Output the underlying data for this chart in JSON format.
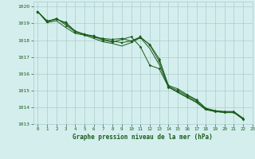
{
  "title": "Graphe pression niveau de la mer (hPa)",
  "background_color": "#d4eeee",
  "grid_color": "#aacccc",
  "line_color": "#1a5c1a",
  "xlim": [
    -0.5,
    23
  ],
  "ylim": [
    1013,
    1020.3
  ],
  "xticks": [
    0,
    1,
    2,
    3,
    4,
    5,
    6,
    7,
    8,
    9,
    10,
    11,
    12,
    13,
    14,
    15,
    16,
    17,
    18,
    19,
    20,
    21,
    22,
    23
  ],
  "yticks": [
    1013,
    1014,
    1015,
    1016,
    1017,
    1018,
    1019,
    1020
  ],
  "series1_x": [
    0,
    1,
    2,
    3,
    4,
    5,
    6,
    7,
    8,
    9,
    10,
    11,
    12,
    13,
    14,
    15,
    16,
    17,
    18,
    19,
    20,
    21,
    22
  ],
  "series1": [
    1019.7,
    1019.1,
    1019.3,
    1018.9,
    1018.5,
    1018.35,
    1018.2,
    1018.1,
    1018.05,
    1018.1,
    1017.95,
    1018.15,
    1017.75,
    1016.9,
    1015.3,
    1015.1,
    1014.75,
    1014.45,
    1013.95,
    1013.8,
    1013.75,
    1013.75,
    1013.35
  ],
  "series2_x": [
    0,
    1,
    2,
    3,
    4,
    5,
    6,
    7,
    8,
    9,
    10,
    11,
    12,
    13,
    14,
    15,
    16,
    17,
    18,
    19,
    20,
    21,
    22
  ],
  "series2": [
    1019.7,
    1019.15,
    1019.25,
    1019.05,
    1018.55,
    1018.35,
    1018.25,
    1018.05,
    1017.95,
    1017.85,
    1017.95,
    1018.2,
    1017.7,
    1016.75,
    1015.25,
    1015.0,
    1014.7,
    1014.4,
    1013.9,
    1013.78,
    1013.72,
    1013.72,
    1013.32
  ],
  "series3_x": [
    0,
    1,
    2,
    3,
    4,
    5,
    6,
    7,
    8,
    9,
    10,
    11,
    12,
    13,
    14,
    15,
    16,
    17,
    18,
    19,
    20,
    21,
    22
  ],
  "series3": [
    1019.7,
    1019.05,
    1019.15,
    1018.75,
    1018.4,
    1018.3,
    1018.1,
    1017.9,
    1017.8,
    1017.65,
    1017.85,
    1018.15,
    1017.5,
    1016.55,
    1015.2,
    1014.88,
    1014.58,
    1014.28,
    1013.85,
    1013.74,
    1013.68,
    1013.68,
    1013.28
  ],
  "series4_x": [
    0,
    1,
    2,
    3,
    4,
    5,
    6,
    7,
    8,
    9,
    10,
    11,
    12,
    13,
    14,
    15,
    16,
    17,
    18,
    19,
    20,
    21,
    22
  ],
  "series4": [
    1019.7,
    1019.1,
    1019.25,
    1019.0,
    1018.5,
    1018.33,
    1018.2,
    1018.0,
    1017.88,
    1018.05,
    1018.2,
    1017.6,
    1016.5,
    1016.3,
    1015.2,
    1014.92,
    1014.62,
    1014.32,
    1013.88,
    1013.76,
    1013.7,
    1013.7,
    1013.3
  ]
}
